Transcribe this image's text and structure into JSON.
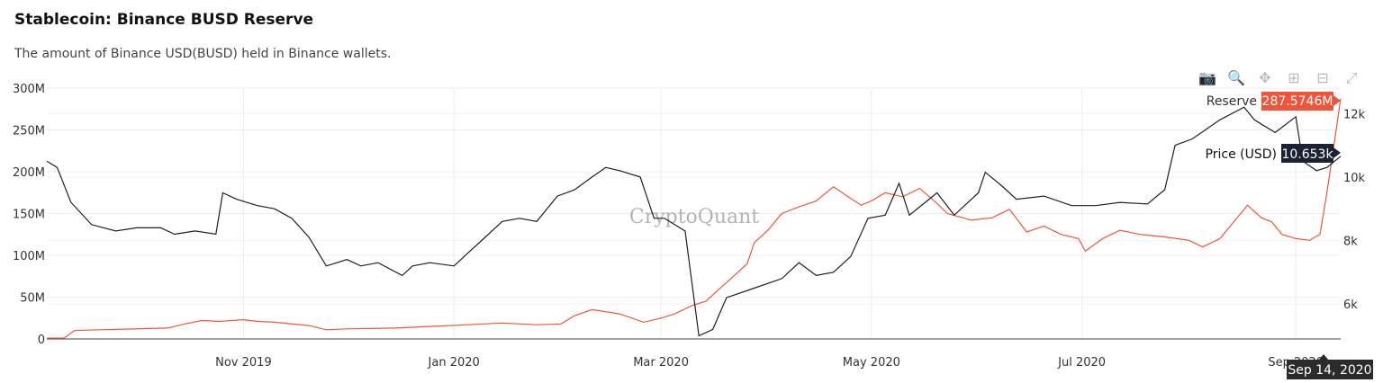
{
  "header": {
    "title": "Stablecoin: Binance BUSD Reserve",
    "subtitle": "The amount of Binance USD(BUSD) held in Binance wallets."
  },
  "toolbar": {
    "icons": [
      "camera-icon",
      "zoom-icon",
      "pan-icon",
      "zoom-in-icon",
      "zoom-out-icon",
      "autoscale-icon"
    ]
  },
  "watermark": "CryptoQuant",
  "hover": {
    "reserve_label": "Reserve",
    "reserve_value": "287.5746M",
    "price_label": "Price (USD)",
    "price_value": "10.653k",
    "date_label": "Sep 14, 2020"
  },
  "colors": {
    "reserve": "#f0553b",
    "price": "#1b1f2a",
    "price_tag_bg": "#1b2233",
    "date_tag_bg": "#2b2b2b"
  },
  "chart_data": {
    "type": "line",
    "x_ticks": [
      {
        "date": "2019-11-01",
        "label": "Nov 2019"
      },
      {
        "date": "2020-01-01",
        "label": "Jan 2020"
      },
      {
        "date": "2020-03-01",
        "label": "Mar 2020"
      },
      {
        "date": "2020-05-01",
        "label": "May 2020"
      },
      {
        "date": "2020-07-01",
        "label": "Jul 2020"
      },
      {
        "date": "2020-09-01",
        "label": "Sep 2020"
      }
    ],
    "xlim": [
      "2019-09-05",
      "2020-09-14"
    ],
    "y_left": {
      "ticks": [
        0,
        50,
        100,
        150,
        200,
        250,
        300
      ],
      "tick_labels": [
        "0",
        "50M",
        "100M",
        "150M",
        "200M",
        "250M",
        "300M"
      ],
      "range": [
        0,
        300
      ],
      "unit": "M"
    },
    "y_right": {
      "ticks": [
        6000,
        8000,
        10000,
        12000
      ],
      "tick_labels": [
        "6k",
        "8k",
        "10k",
        "12k"
      ],
      "range": [
        4900,
        12800
      ]
    },
    "series": [
      {
        "name": "Reserve",
        "axis": "left",
        "points": [
          [
            "2019-09-05",
            1
          ],
          [
            "2019-09-10",
            1
          ],
          [
            "2019-09-13",
            10
          ],
          [
            "2019-09-20",
            11
          ],
          [
            "2019-10-10",
            13
          ],
          [
            "2019-10-15",
            18
          ],
          [
            "2019-10-20",
            22
          ],
          [
            "2019-10-25",
            21
          ],
          [
            "2019-11-01",
            23
          ],
          [
            "2019-11-05",
            21
          ],
          [
            "2019-11-10",
            20
          ],
          [
            "2019-11-20",
            16
          ],
          [
            "2019-11-25",
            11
          ],
          [
            "2019-12-01",
            12
          ],
          [
            "2019-12-15",
            13
          ],
          [
            "2019-12-25",
            15
          ],
          [
            "2020-01-05",
            17
          ],
          [
            "2020-01-15",
            19
          ],
          [
            "2020-01-25",
            17
          ],
          [
            "2020-02-01",
            18
          ],
          [
            "2020-02-05",
            28
          ],
          [
            "2020-02-10",
            35
          ],
          [
            "2020-02-18",
            30
          ],
          [
            "2020-02-25",
            20
          ],
          [
            "2020-03-01",
            25
          ],
          [
            "2020-03-05",
            30
          ],
          [
            "2020-03-10",
            40
          ],
          [
            "2020-03-14",
            45
          ],
          [
            "2020-03-18",
            60
          ],
          [
            "2020-03-22",
            75
          ],
          [
            "2020-03-26",
            90
          ],
          [
            "2020-03-28",
            115
          ],
          [
            "2020-04-01",
            130
          ],
          [
            "2020-04-05",
            150
          ],
          [
            "2020-04-10",
            158
          ],
          [
            "2020-04-15",
            165
          ],
          [
            "2020-04-20",
            182
          ],
          [
            "2020-04-25",
            168
          ],
          [
            "2020-04-28",
            160
          ],
          [
            "2020-05-01",
            165
          ],
          [
            "2020-05-05",
            175
          ],
          [
            "2020-05-10",
            170
          ],
          [
            "2020-05-15",
            180
          ],
          [
            "2020-05-20",
            162
          ],
          [
            "2020-05-23",
            150
          ],
          [
            "2020-05-30",
            142
          ],
          [
            "2020-06-05",
            145
          ],
          [
            "2020-06-10",
            155
          ],
          [
            "2020-06-15",
            128
          ],
          [
            "2020-06-20",
            135
          ],
          [
            "2020-06-25",
            125
          ],
          [
            "2020-06-30",
            120
          ],
          [
            "2020-07-02",
            105
          ],
          [
            "2020-07-07",
            120
          ],
          [
            "2020-07-12",
            130
          ],
          [
            "2020-07-18",
            125
          ],
          [
            "2020-07-25",
            122
          ],
          [
            "2020-08-01",
            118
          ],
          [
            "2020-08-05",
            110
          ],
          [
            "2020-08-10",
            120
          ],
          [
            "2020-08-15",
            145
          ],
          [
            "2020-08-18",
            160
          ],
          [
            "2020-08-22",
            145
          ],
          [
            "2020-08-25",
            140
          ],
          [
            "2020-08-28",
            125
          ],
          [
            "2020-09-01",
            120
          ],
          [
            "2020-09-05",
            118
          ],
          [
            "2020-09-08",
            125
          ],
          [
            "2020-09-10",
            175
          ],
          [
            "2020-09-12",
            230
          ],
          [
            "2020-09-14",
            287.5746
          ]
        ]
      },
      {
        "name": "Price (USD)",
        "axis": "right",
        "points": [
          [
            "2019-09-05",
            10500
          ],
          [
            "2019-09-08",
            10300
          ],
          [
            "2019-09-12",
            9200
          ],
          [
            "2019-09-18",
            8500
          ],
          [
            "2019-09-25",
            8300
          ],
          [
            "2019-10-01",
            8400
          ],
          [
            "2019-10-08",
            8400
          ],
          [
            "2019-10-12",
            8200
          ],
          [
            "2019-10-18",
            8300
          ],
          [
            "2019-10-24",
            8200
          ],
          [
            "2019-10-26",
            9500
          ],
          [
            "2019-10-30",
            9300
          ],
          [
            "2019-11-05",
            9100
          ],
          [
            "2019-11-10",
            9000
          ],
          [
            "2019-11-15",
            8700
          ],
          [
            "2019-11-20",
            8100
          ],
          [
            "2019-11-25",
            7200
          ],
          [
            "2019-12-01",
            7400
          ],
          [
            "2019-12-05",
            7200
          ],
          [
            "2019-12-10",
            7300
          ],
          [
            "2019-12-17",
            6900
          ],
          [
            "2019-12-20",
            7200
          ],
          [
            "2019-12-25",
            7300
          ],
          [
            "2020-01-01",
            7200
          ],
          [
            "2020-01-05",
            7600
          ],
          [
            "2020-01-10",
            8100
          ],
          [
            "2020-01-15",
            8600
          ],
          [
            "2020-01-20",
            8700
          ],
          [
            "2020-01-25",
            8600
          ],
          [
            "2020-01-31",
            9400
          ],
          [
            "2020-02-05",
            9600
          ],
          [
            "2020-02-10",
            10000
          ],
          [
            "2020-02-14",
            10300
          ],
          [
            "2020-02-18",
            10200
          ],
          [
            "2020-02-24",
            10000
          ],
          [
            "2020-02-28",
            8700
          ],
          [
            "2020-03-02",
            8700
          ],
          [
            "2020-03-08",
            8300
          ],
          [
            "2020-03-12",
            5000
          ],
          [
            "2020-03-16",
            5200
          ],
          [
            "2020-03-20",
            6200
          ],
          [
            "2020-03-28",
            6500
          ],
          [
            "2020-04-05",
            6800
          ],
          [
            "2020-04-10",
            7300
          ],
          [
            "2020-04-15",
            6900
          ],
          [
            "2020-04-20",
            7000
          ],
          [
            "2020-04-25",
            7500
          ],
          [
            "2020-04-30",
            8700
          ],
          [
            "2020-05-05",
            8800
          ],
          [
            "2020-05-09",
            9800
          ],
          [
            "2020-05-12",
            8800
          ],
          [
            "2020-05-20",
            9500
          ],
          [
            "2020-05-25",
            8800
          ],
          [
            "2020-06-01",
            9500
          ],
          [
            "2020-06-03",
            10150
          ],
          [
            "2020-06-08",
            9700
          ],
          [
            "2020-06-12",
            9300
          ],
          [
            "2020-06-20",
            9400
          ],
          [
            "2020-06-28",
            9100
          ],
          [
            "2020-07-05",
            9100
          ],
          [
            "2020-07-12",
            9200
          ],
          [
            "2020-07-20",
            9150
          ],
          [
            "2020-07-25",
            9600
          ],
          [
            "2020-07-28",
            11000
          ],
          [
            "2020-08-02",
            11200
          ],
          [
            "2020-08-10",
            11800
          ],
          [
            "2020-08-17",
            12200
          ],
          [
            "2020-08-20",
            11800
          ],
          [
            "2020-08-26",
            11400
          ],
          [
            "2020-09-01",
            11900
          ],
          [
            "2020-09-03",
            10500
          ],
          [
            "2020-09-07",
            10200
          ],
          [
            "2020-09-10",
            10300
          ],
          [
            "2020-09-14",
            10653
          ]
        ]
      }
    ]
  }
}
